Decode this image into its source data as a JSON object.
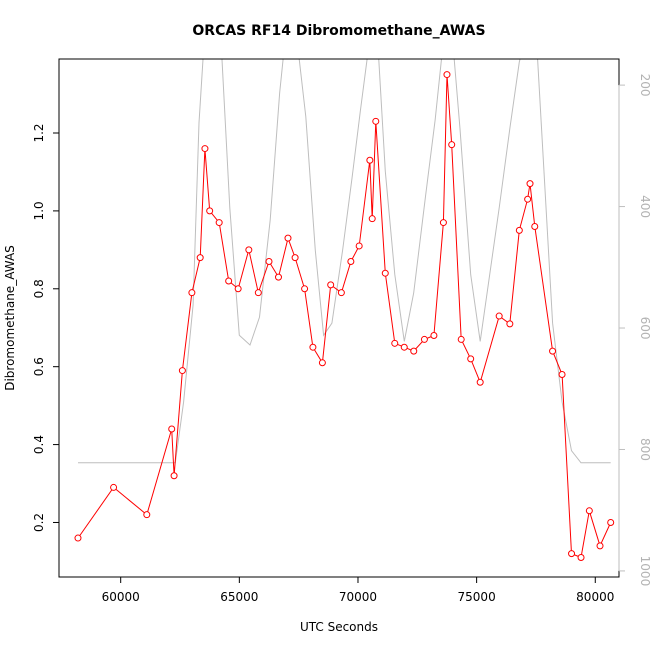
{
  "chart_data": {
    "type": "line",
    "title": "ORCAS RF14 Dibromomethane_AWAS",
    "xlabel": "UTC Seconds",
    "ylabel": "Dibromomethane_AWAS",
    "xlim": [
      57400,
      81000
    ],
    "ylim": [
      0.06,
      1.39
    ],
    "xticks": [
      60000,
      65000,
      70000,
      75000,
      80000
    ],
    "xtick_labels": [
      "60000",
      "65000",
      "70000",
      "75000",
      "80000"
    ],
    "yticks": [
      0.2,
      0.4,
      0.6,
      0.8,
      1.0,
      1.2
    ],
    "ytick_labels": [
      "0.2",
      "0.4",
      "0.6",
      "0.8",
      "1.0",
      "1.2"
    ],
    "y2lim": [
      1010,
      157
    ],
    "y2ticks": [
      200,
      400,
      600,
      800,
      1000
    ],
    "y2tick_labels": [
      "200",
      "400",
      "600",
      "800",
      "1000"
    ],
    "grid": false,
    "legend": "none",
    "series": [
      {
        "color": "#ff0000",
        "style": "line+open-circles",
        "axis": "left",
        "x": [
          58200,
          59700,
          61100,
          62150,
          62250,
          62600,
          63000,
          63350,
          63550,
          63750,
          64150,
          64550,
          64950,
          65400,
          65800,
          66250,
          66650,
          67050,
          67350,
          67750,
          68100,
          68500,
          68850,
          69300,
          69700,
          70050,
          70500,
          70600,
          70750,
          71150,
          71550,
          71950,
          72350,
          72800,
          73200,
          73600,
          73750,
          73950,
          74350,
          74750,
          75150,
          75950,
          76400,
          76800,
          77150,
          77250,
          77450,
          78200,
          78600,
          79000,
          79400,
          79750,
          80200,
          80650
        ],
        "values": [
          0.16,
          0.29,
          0.22,
          0.44,
          0.32,
          0.59,
          0.79,
          0.88,
          1.16,
          1.0,
          0.97,
          0.82,
          0.8,
          0.9,
          0.79,
          0.87,
          0.83,
          0.93,
          0.88,
          0.8,
          0.65,
          0.61,
          0.81,
          0.79,
          0.87,
          0.91,
          1.13,
          0.98,
          1.23,
          0.84,
          0.66,
          0.65,
          0.64,
          0.67,
          0.68,
          0.97,
          1.35,
          1.17,
          0.67,
          0.62,
          0.56,
          0.73,
          0.71,
          0.95,
          1.03,
          1.07,
          0.96,
          0.64,
          0.58,
          0.12,
          0.11,
          0.23,
          0.14,
          0.2
        ]
      },
      {
        "color": "#bebebe",
        "style": "line",
        "axis": "right",
        "x": [
          58200,
          59700,
          61100,
          62150,
          62300,
          62650,
          63050,
          63300,
          63550,
          63800,
          64200,
          64600,
          65000,
          65450,
          65850,
          66300,
          66700,
          67000,
          67350,
          67800,
          68200,
          68550,
          68900,
          69350,
          69750,
          70100,
          70550,
          70800,
          71150,
          71550,
          71950,
          72350,
          72850,
          73250,
          73650,
          73950,
          74300,
          74750,
          75150,
          75950,
          76400,
          76800,
          77150,
          77500,
          78200,
          78600,
          79000,
          79400,
          79750,
          80200,
          80650
        ],
        "values": [
          822,
          822,
          822,
          822,
          822,
          722,
          562,
          262,
          108,
          108,
          108,
          402,
          612,
          628,
          582,
          422,
          212,
          98,
          98,
          252,
          472,
          612,
          592,
          472,
          352,
          242,
          108,
          108,
          342,
          512,
          622,
          542,
          382,
          258,
          108,
          108,
          272,
          512,
          622,
          402,
          272,
          162,
          108,
          108,
          592,
          722,
          802,
          822,
          822,
          822,
          822
        ]
      }
    ]
  }
}
